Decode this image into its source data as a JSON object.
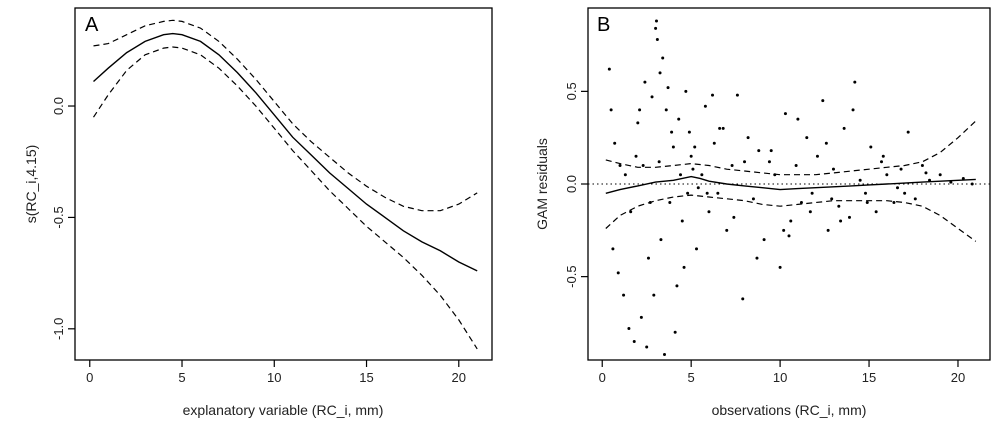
{
  "chart_data": [
    {
      "type": "line",
      "panel_label": "A",
      "xlabel": "explanatory variable (RC_i, mm)",
      "ylabel": "s(RC_i,4.15)",
      "xlim": [
        -0.8,
        21.8
      ],
      "ylim": [
        -1.14,
        0.44
      ],
      "xticks": [
        0,
        5,
        10,
        15,
        20
      ],
      "yticks": [
        -1.0,
        -0.5,
        0.0
      ],
      "ytick_labels": [
        "-1.0",
        "-0.5",
        "0.0"
      ],
      "series": [
        {
          "role": "fit",
          "x": [
            0.2,
            1,
            2,
            3,
            4,
            4.5,
            5,
            6,
            7,
            8,
            9,
            10,
            11,
            12,
            13,
            14,
            15,
            16,
            17,
            18,
            19,
            20,
            21
          ],
          "y": [
            0.11,
            0.17,
            0.24,
            0.29,
            0.32,
            0.325,
            0.32,
            0.29,
            0.23,
            0.15,
            0.06,
            -0.04,
            -0.14,
            -0.22,
            -0.3,
            -0.37,
            -0.44,
            -0.5,
            -0.56,
            -0.61,
            -0.65,
            -0.7,
            -0.74
          ]
        },
        {
          "role": "upper",
          "x": [
            0.2,
            1,
            2,
            3,
            4,
            4.5,
            5,
            6,
            7,
            8,
            9,
            10,
            11,
            12,
            13,
            14,
            15,
            16,
            17,
            18,
            19,
            20,
            21
          ],
          "y": [
            0.27,
            0.28,
            0.32,
            0.36,
            0.38,
            0.385,
            0.38,
            0.35,
            0.29,
            0.21,
            0.12,
            0.02,
            -0.08,
            -0.16,
            -0.23,
            -0.3,
            -0.36,
            -0.41,
            -0.45,
            -0.47,
            -0.47,
            -0.44,
            -0.39
          ]
        },
        {
          "role": "lower",
          "x": [
            0.2,
            1,
            2,
            3,
            4,
            4.5,
            5,
            6,
            7,
            8,
            9,
            10,
            11,
            12,
            13,
            14,
            15,
            16,
            17,
            18,
            19,
            20,
            21
          ],
          "y": [
            -0.05,
            0.05,
            0.16,
            0.23,
            0.26,
            0.265,
            0.26,
            0.23,
            0.17,
            0.09,
            0.0,
            -0.1,
            -0.2,
            -0.29,
            -0.38,
            -0.46,
            -0.54,
            -0.61,
            -0.68,
            -0.76,
            -0.85,
            -0.96,
            -1.09
          ]
        }
      ]
    },
    {
      "type": "scatter",
      "panel_label": "B",
      "xlabel": "observations (RC_i, mm)",
      "ylabel": "GAM residuals",
      "xlim": [
        -0.8,
        21.8
      ],
      "ylim": [
        -0.95,
        0.95
      ],
      "xticks": [
        0,
        5,
        10,
        15,
        20
      ],
      "yticks": [
        -0.5,
        0.0,
        0.5
      ],
      "ytick_labels": [
        "-0.5",
        "0.0",
        "0.5"
      ],
      "reference_line_y": 0,
      "series": [
        {
          "role": "fit",
          "x": [
            0.2,
            1,
            2,
            3,
            4,
            5,
            5.5,
            6,
            7,
            8,
            9,
            10,
            11,
            12,
            13,
            14,
            15,
            16,
            17,
            18,
            19,
            20,
            21
          ],
          "y": [
            -0.05,
            -0.03,
            -0.01,
            0.01,
            0.02,
            0.04,
            0.03,
            0.015,
            0.0,
            -0.01,
            -0.02,
            -0.03,
            -0.025,
            -0.02,
            -0.015,
            -0.01,
            -0.005,
            0.0,
            0.005,
            0.01,
            0.015,
            0.02,
            0.025
          ]
        },
        {
          "role": "upper",
          "x": [
            0.2,
            1,
            2,
            3,
            4,
            5,
            6,
            7,
            8,
            9,
            10,
            11,
            12,
            13,
            14,
            15,
            16,
            17,
            18,
            19,
            20,
            21
          ],
          "y": [
            0.13,
            0.11,
            0.09,
            0.09,
            0.1,
            0.11,
            0.1,
            0.08,
            0.07,
            0.06,
            0.05,
            0.05,
            0.05,
            0.06,
            0.07,
            0.08,
            0.09,
            0.1,
            0.12,
            0.17,
            0.25,
            0.34
          ]
        },
        {
          "role": "lower",
          "x": [
            0.2,
            1,
            2,
            3,
            4,
            5,
            6,
            7,
            8,
            9,
            10,
            11,
            12,
            13,
            14,
            15,
            16,
            17,
            18,
            19,
            20,
            21
          ],
          "y": [
            -0.24,
            -0.17,
            -0.12,
            -0.09,
            -0.07,
            -0.06,
            -0.07,
            -0.08,
            -0.09,
            -0.11,
            -0.12,
            -0.11,
            -0.1,
            -0.09,
            -0.09,
            -0.09,
            -0.09,
            -0.1,
            -0.12,
            -0.17,
            -0.24,
            -0.31
          ]
        },
        {
          "role": "points",
          "x": [
            0.4,
            0.5,
            0.7,
            0.9,
            1.2,
            1.3,
            1.5,
            1.8,
            2.0,
            2.2,
            2.4,
            2.6,
            2.8,
            3.0,
            3.1,
            3.2,
            3.3,
            3.4,
            3.6,
            3.8,
            3.9,
            4.0,
            4.2,
            4.3,
            4.5,
            4.7,
            4.8,
            5.0,
            5.1,
            5.3,
            5.6,
            5.8,
            6.0,
            6.3,
            6.5,
            6.8,
            7.0,
            7.3,
            7.6,
            7.9,
            8.2,
            8.5,
            8.8,
            9.1,
            9.4,
            9.7,
            10.0,
            10.3,
            10.6,
            10.9,
            11.2,
            11.5,
            11.8,
            12.1,
            12.4,
            12.7,
            13.0,
            13.3,
            13.6,
            13.9,
            14.2,
            14.5,
            14.8,
            15.1,
            15.4,
            15.7,
            16.0,
            16.4,
            16.8,
            17.2,
            17.6,
            18.0,
            18.4,
            19.0,
            19.6,
            20.3,
            20.8,
            0.6,
            1.0,
            1.6,
            2.1,
            2.5,
            2.9,
            3.5,
            4.1,
            4.6,
            5.2,
            5.9,
            6.6,
            7.4,
            8.0,
            8.7,
            9.5,
            10.2,
            11.0,
            11.7,
            12.6,
            13.4,
            14.1,
            14.9,
            15.8,
            17.0,
            18.2,
            3.05,
            3.25,
            3.7,
            2.3,
            1.9,
            2.7,
            4.4,
            4.9,
            5.4,
            6.2,
            10.5,
            12.9,
            16.6
          ],
          "y": [
            0.62,
            0.4,
            0.22,
            -0.48,
            -0.6,
            0.05,
            -0.78,
            -0.85,
            0.33,
            -0.72,
            0.55,
            -0.4,
            0.47,
            0.84,
            0.78,
            0.12,
            -0.3,
            0.68,
            0.4,
            -0.1,
            0.28,
            0.2,
            -0.55,
            0.35,
            -0.2,
            0.5,
            -0.05,
            0.15,
            0.08,
            -0.35,
            0.05,
            0.42,
            -0.15,
            0.22,
            -0.05,
            0.3,
            -0.25,
            0.1,
            0.48,
            -0.62,
            0.25,
            -0.08,
            0.18,
            -0.3,
            0.12,
            0.05,
            -0.45,
            0.38,
            -0.2,
            0.1,
            -0.1,
            0.25,
            -0.05,
            0.15,
            0.45,
            -0.25,
            0.08,
            -0.12,
            0.3,
            -0.18,
            0.55,
            0.02,
            -0.05,
            0.2,
            -0.15,
            0.12,
            0.05,
            -0.1,
            0.08,
            0.28,
            -0.08,
            0.1,
            0.02,
            0.05,
            0.01,
            0.03,
            0.0,
            -0.35,
            0.1,
            -0.15,
            0.4,
            -0.88,
            -0.6,
            -0.92,
            -0.8,
            -0.45,
            0.2,
            -0.05,
            0.3,
            -0.18,
            0.12,
            -0.4,
            0.18,
            -0.25,
            0.35,
            -0.15,
            0.22,
            -0.2,
            0.4,
            -0.1,
            0.15,
            -0.05,
            0.06,
            0.88,
            0.6,
            0.52,
            0.1,
            0.15,
            -0.1,
            0.05,
            0.28,
            -0.02,
            0.48,
            -0.28,
            -0.08,
            -0.02
          ]
        }
      ]
    }
  ]
}
